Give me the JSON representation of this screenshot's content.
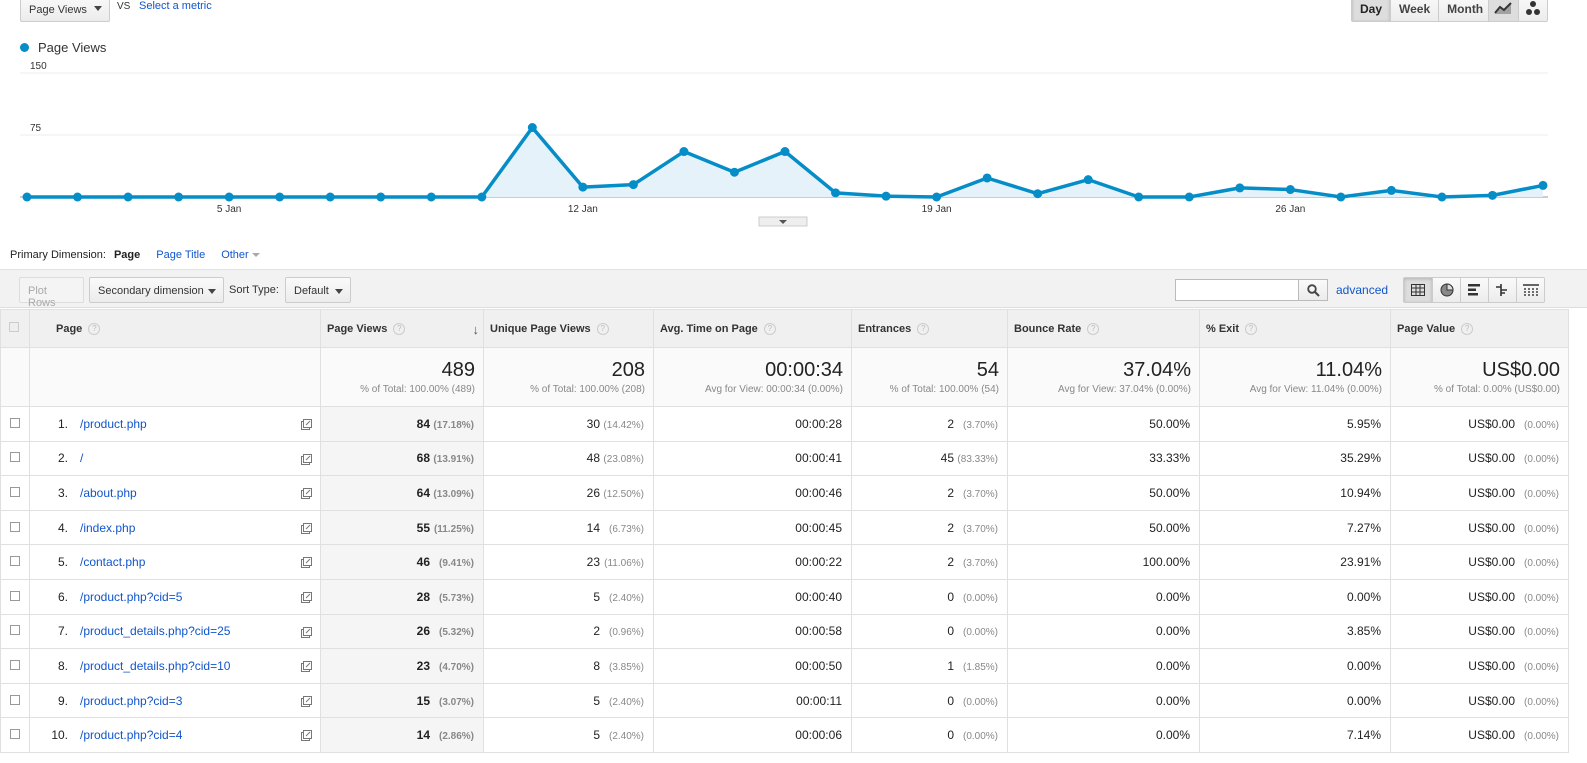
{
  "toolbar": {
    "metric": "Page Views",
    "vs": "VS",
    "select_metric": "Select a metric",
    "periods": [
      "Day",
      "Week",
      "Month"
    ],
    "active_period": "Day"
  },
  "chart_data": {
    "type": "area",
    "series": [
      {
        "name": "Page Views",
        "color": "#058dc7",
        "values": [
          0,
          0,
          0,
          0,
          0,
          0,
          0,
          0,
          0,
          0,
          84,
          12,
          15,
          55,
          30,
          55,
          5,
          1,
          0,
          23,
          4,
          21,
          0,
          0,
          11,
          9,
          0,
          8,
          0,
          2,
          14
        ]
      }
    ],
    "x": [
      "1 Jan",
      "2 Jan",
      "3 Jan",
      "4 Jan",
      "5 Jan",
      "6 Jan",
      "7 Jan",
      "8 Jan",
      "9 Jan",
      "10 Jan",
      "11 Jan",
      "12 Jan",
      "13 Jan",
      "14 Jan",
      "15 Jan",
      "16 Jan",
      "17 Jan",
      "18 Jan",
      "19 Jan",
      "20 Jan",
      "21 Jan",
      "22 Jan",
      "23 Jan",
      "24 Jan",
      "25 Jan",
      "26 Jan",
      "27 Jan",
      "28 Jan",
      "29 Jan",
      "30 Jan",
      "31 Jan"
    ],
    "x_tick_labels": [
      "5 Jan",
      "12 Jan",
      "19 Jan",
      "26 Jan"
    ],
    "y_tick_labels": [
      "150",
      "75"
    ],
    "ylim": [
      0,
      150
    ],
    "legend": "top-left",
    "grid": true
  },
  "dimension": {
    "label": "Primary Dimension:",
    "current": "Page",
    "page_title": "Page Title",
    "other": "Other"
  },
  "controls": {
    "plot_rows": "Plot Rows",
    "secondary_dimension": "Secondary dimension",
    "sort_type_label": "Sort Type:",
    "sort_type_value": "Default",
    "advanced": "advanced"
  },
  "table": {
    "columns": [
      "Page",
      "Page Views",
      "Unique Page Views",
      "Avg. Time on Page",
      "Entrances",
      "Bounce Rate",
      "% Exit",
      "Page Value"
    ],
    "totals": [
      {
        "value": "489",
        "sub": "% of Total: 100.00% (489)"
      },
      {
        "value": "208",
        "sub": "% of Total: 100.00% (208)"
      },
      {
        "value": "00:00:34",
        "sub": "Avg for View: 00:00:34 (0.00%)"
      },
      {
        "value": "54",
        "sub": "% of Total: 100.00% (54)"
      },
      {
        "value": "37.04%",
        "sub": "Avg for View: 37.04% (0.00%)"
      },
      {
        "value": "11.04%",
        "sub": "Avg for View: 11.04% (0.00%)"
      },
      {
        "value": "US$0.00",
        "sub": "% of Total: 0.00% (US$0.00)"
      }
    ],
    "rows": [
      {
        "n": "1.",
        "page": "/product.php",
        "pv": "84",
        "pv_pct": "(17.18%)",
        "upv": "30",
        "upv_pct": "(14.42%)",
        "time": "00:00:28",
        "ent": "2",
        "ent_pct": "(3.70%)",
        "bounce": "50.00%",
        "exit": "5.95%",
        "val": "US$0.00",
        "val_pct": "(0.00%)"
      },
      {
        "n": "2.",
        "page": "/",
        "pv": "68",
        "pv_pct": "(13.91%)",
        "upv": "48",
        "upv_pct": "(23.08%)",
        "time": "00:00:41",
        "ent": "45",
        "ent_pct": "(83.33%)",
        "bounce": "33.33%",
        "exit": "35.29%",
        "val": "US$0.00",
        "val_pct": "(0.00%)"
      },
      {
        "n": "3.",
        "page": "/about.php",
        "pv": "64",
        "pv_pct": "(13.09%)",
        "upv": "26",
        "upv_pct": "(12.50%)",
        "time": "00:00:46",
        "ent": "2",
        "ent_pct": "(3.70%)",
        "bounce": "50.00%",
        "exit": "10.94%",
        "val": "US$0.00",
        "val_pct": "(0.00%)"
      },
      {
        "n": "4.",
        "page": "/index.php",
        "pv": "55",
        "pv_pct": "(11.25%)",
        "upv": "14",
        "upv_pct": "(6.73%)",
        "time": "00:00:45",
        "ent": "2",
        "ent_pct": "(3.70%)",
        "bounce": "50.00%",
        "exit": "7.27%",
        "val": "US$0.00",
        "val_pct": "(0.00%)"
      },
      {
        "n": "5.",
        "page": "/contact.php",
        "pv": "46",
        "pv_pct": "(9.41%)",
        "upv": "23",
        "upv_pct": "(11.06%)",
        "time": "00:00:22",
        "ent": "2",
        "ent_pct": "(3.70%)",
        "bounce": "100.00%",
        "exit": "23.91%",
        "val": "US$0.00",
        "val_pct": "(0.00%)"
      },
      {
        "n": "6.",
        "page": "/product.php?cid=5",
        "pv": "28",
        "pv_pct": "(5.73%)",
        "upv": "5",
        "upv_pct": "(2.40%)",
        "time": "00:00:40",
        "ent": "0",
        "ent_pct": "(0.00%)",
        "bounce": "0.00%",
        "exit": "0.00%",
        "val": "US$0.00",
        "val_pct": "(0.00%)"
      },
      {
        "n": "7.",
        "page": "/product_details.php?cid=25",
        "pv": "26",
        "pv_pct": "(5.32%)",
        "upv": "2",
        "upv_pct": "(0.96%)",
        "time": "00:00:58",
        "ent": "0",
        "ent_pct": "(0.00%)",
        "bounce": "0.00%",
        "exit": "3.85%",
        "val": "US$0.00",
        "val_pct": "(0.00%)"
      },
      {
        "n": "8.",
        "page": "/product_details.php?cid=10",
        "pv": "23",
        "pv_pct": "(4.70%)",
        "upv": "8",
        "upv_pct": "(3.85%)",
        "time": "00:00:50",
        "ent": "1",
        "ent_pct": "(1.85%)",
        "bounce": "0.00%",
        "exit": "0.00%",
        "val": "US$0.00",
        "val_pct": "(0.00%)"
      },
      {
        "n": "9.",
        "page": "/product.php?cid=3",
        "pv": "15",
        "pv_pct": "(3.07%)",
        "upv": "5",
        "upv_pct": "(2.40%)",
        "time": "00:00:11",
        "ent": "0",
        "ent_pct": "(0.00%)",
        "bounce": "0.00%",
        "exit": "0.00%",
        "val": "US$0.00",
        "val_pct": "(0.00%)"
      },
      {
        "n": "10.",
        "page": "/product.php?cid=4",
        "pv": "14",
        "pv_pct": "(2.86%)",
        "upv": "5",
        "upv_pct": "(2.40%)",
        "time": "00:00:06",
        "ent": "0",
        "ent_pct": "(0.00%)",
        "bounce": "0.00%",
        "exit": "7.14%",
        "val": "US$0.00",
        "val_pct": "(0.00%)"
      }
    ]
  }
}
